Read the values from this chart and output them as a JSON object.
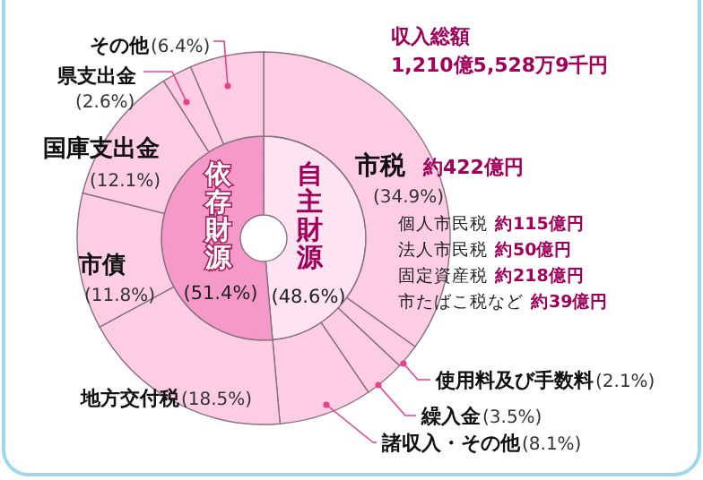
{
  "chart_data": [
    {
      "type": "donut",
      "categories": [
        "自主財源",
        "依存財源"
      ],
      "values": [
        48.6,
        51.4
      ],
      "colors": [
        "#fde4f0",
        "#f59ac8"
      ],
      "value_labels": [
        "(48.6%)",
        "(51.4%)"
      ]
    },
    {
      "type": "donut",
      "title": "収入総額",
      "subtitle": "1,210億5,528万9千円",
      "categories": [
        "市税",
        "使用料及び手数料",
        "繰入金",
        "諸収入・その他",
        "地方交付税",
        "市債",
        "国庫支出金",
        "県支出金",
        "その他"
      ],
      "values": [
        34.9,
        2.1,
        3.5,
        8.1,
        18.5,
        11.8,
        12.1,
        2.6,
        6.4
      ],
      "colors": [
        "#fccde3",
        "#fccde3",
        "#fccde3",
        "#fccde3",
        "#fccde3",
        "#fccde3",
        "#fccde3",
        "#fccde3",
        "#fccde3"
      ],
      "value_labels": [
        "(34.9%)",
        "(2.1%)",
        "(3.5%)",
        "(8.1%)",
        "(18.5%)",
        "(11.8%)",
        "(12.1%)",
        "(2.6%)",
        "(6.4%)"
      ],
      "annotations": [
        "約422億円",
        "個人市民税 約115億円",
        "法人市民税 約50億円",
        "固定資産税 約218億円",
        "市たばこ税など 約39億円"
      ]
    }
  ]
}
